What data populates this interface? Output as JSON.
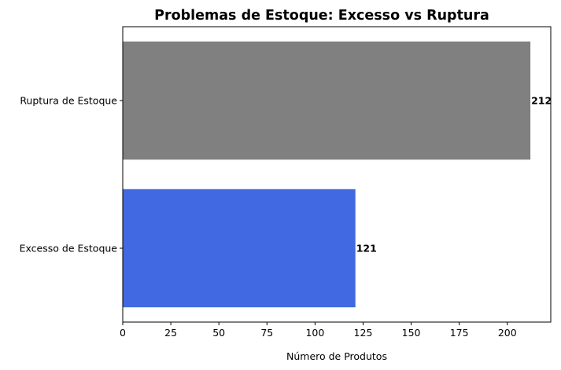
{
  "chart_data": {
    "type": "bar",
    "orientation": "horizontal",
    "title": "Problemas de Estoque: Excesso vs Ruptura",
    "xlabel": "Número de Produtos",
    "ylabel": "",
    "categories": [
      "Excesso de Estoque",
      "Ruptura de Estoque"
    ],
    "values": [
      121,
      212
    ],
    "data_labels": [
      "121",
      "212"
    ],
    "colors": [
      "#4169e1",
      "#808080"
    ],
    "xlim": [
      0,
      222.6
    ],
    "xticks": [
      0,
      25,
      50,
      75,
      100,
      125,
      150,
      175,
      200
    ],
    "xtick_labels": [
      "0",
      "25",
      "50",
      "75",
      "100",
      "125",
      "150",
      "175",
      "200"
    ],
    "grid": false,
    "legend": "none"
  }
}
